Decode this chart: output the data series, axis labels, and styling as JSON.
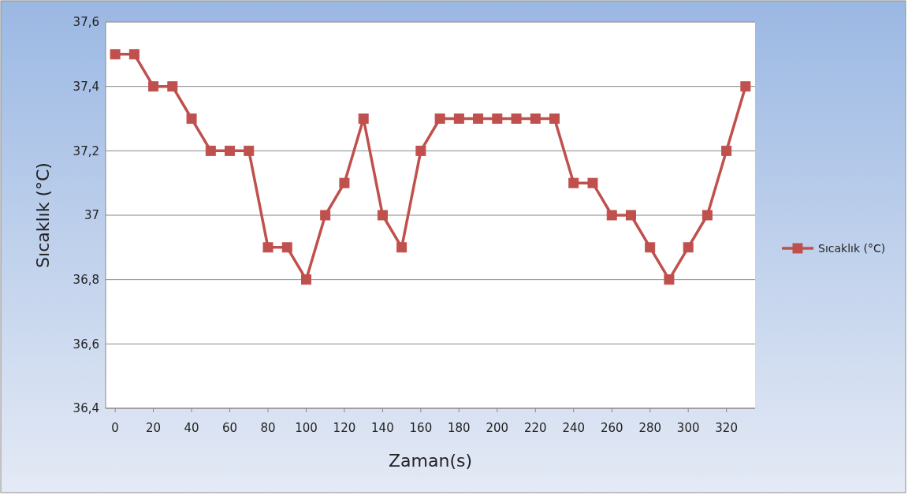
{
  "chart_data": {
    "type": "line",
    "xlabel": "Zaman(s)",
    "ylabel": "Sıcaklık (°C)",
    "x": [
      0,
      10,
      20,
      30,
      40,
      50,
      60,
      70,
      80,
      90,
      100,
      110,
      120,
      130,
      140,
      150,
      160,
      170,
      180,
      190,
      200,
      210,
      220,
      230,
      240,
      250,
      260,
      270,
      280,
      290,
      300,
      310,
      320,
      330
    ],
    "series": [
      {
        "name": "Sıcaklık (°C)",
        "color": "#c0504d",
        "values": [
          37.5,
          37.5,
          37.4,
          37.4,
          37.3,
          37.2,
          37.2,
          37.2,
          36.9,
          36.9,
          36.8,
          37.0,
          37.1,
          37.3,
          37.0,
          36.9,
          37.2,
          37.3,
          37.3,
          37.3,
          37.3,
          37.3,
          37.3,
          37.3,
          37.1,
          37.1,
          37.0,
          37.0,
          36.9,
          36.8,
          36.9,
          37.0,
          37.2,
          37.4
        ]
      }
    ],
    "xlim": [
      -5,
      335
    ],
    "xticks": [
      0,
      20,
      40,
      60,
      80,
      100,
      120,
      140,
      160,
      180,
      200,
      220,
      240,
      260,
      280,
      300,
      320
    ],
    "ylim": [
      36.4,
      37.6
    ],
    "yticks": [
      {
        "value": 36.4,
        "label": "36,4"
      },
      {
        "value": 36.6,
        "label": "36,6"
      },
      {
        "value": 36.8,
        "label": "36,8"
      },
      37,
      {
        "value": 37.2,
        "label": "37,2"
      },
      {
        "value": 37.4,
        "label": "37,4"
      },
      {
        "value": 37.6,
        "label": "37,6"
      }
    ],
    "grid": "y",
    "legend": "right",
    "marker": "square",
    "line_style": "solid"
  }
}
